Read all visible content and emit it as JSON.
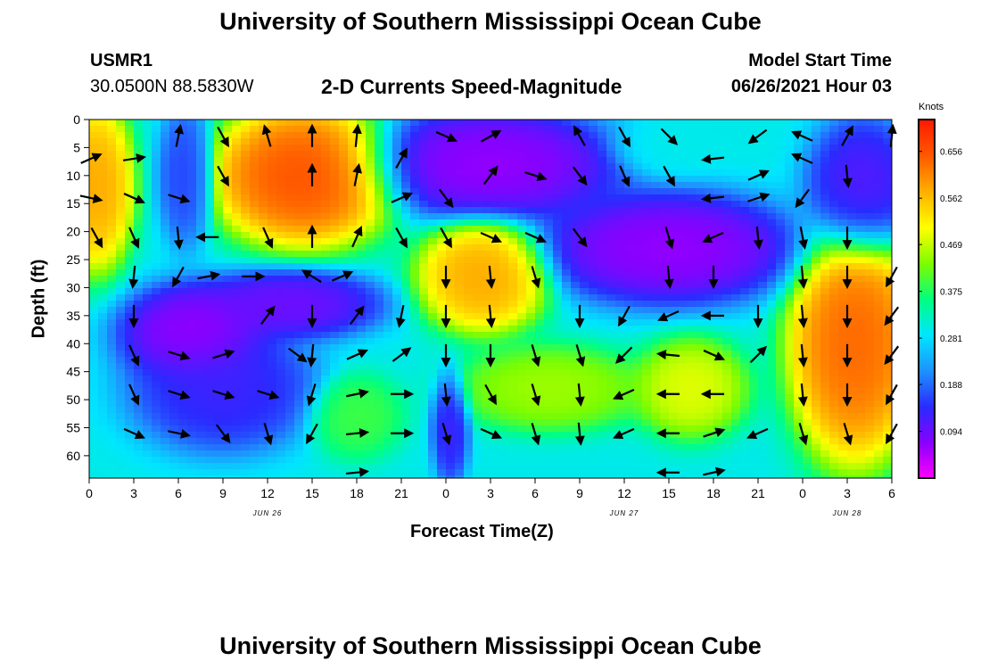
{
  "header": {
    "title": "University of Southern Mississippi Ocean Cube",
    "station": "USMR1",
    "coords": "30.0500N  88.5830W",
    "subtitle": "2-D Currents Speed-Magnitude",
    "model_start_label": "Model Start Time",
    "model_start_value": "06/26/2021 Hour 03"
  },
  "footer": {
    "title": "University of Southern Mississippi Ocean Cube"
  },
  "chart_data": {
    "type": "heatmap",
    "xlabel": "Forecast Time(Z)",
    "ylabel": "Depth (ft)",
    "x_ticks": [
      "0",
      "3",
      "6",
      "9",
      "12",
      "15",
      "18",
      "21",
      "0",
      "3",
      "6",
      "9",
      "12",
      "15",
      "18",
      "21",
      "0",
      "3",
      "6"
    ],
    "date_labels": [
      {
        "tick_index": 4,
        "text": "JUN 26"
      },
      {
        "tick_index": 12,
        "text": "JUN 27"
      },
      {
        "tick_index": 17,
        "text": "JUN 28"
      }
    ],
    "y_ticks": [
      0,
      5,
      10,
      15,
      20,
      25,
      30,
      35,
      40,
      45,
      50,
      55,
      60
    ],
    "ylim": [
      0,
      64
    ],
    "xlim_hours": [
      0,
      54
    ],
    "reversed_y": true,
    "colorbar": {
      "units": "Knots",
      "labels": [
        "0.656",
        "0.562",
        "0.469",
        "0.375",
        "0.281",
        "0.188",
        "0.094"
      ],
      "values": [
        0.656,
        0.562,
        0.469,
        0.375,
        0.281,
        0.188,
        0.094
      ],
      "range": [
        0,
        0.72
      ],
      "colors": [
        "#ff00ff",
        "#8a00ff",
        "#2a2aff",
        "#1e90ff",
        "#00e5ff",
        "#00ff80",
        "#7cfc00",
        "#ffff00",
        "#ffb000",
        "#ff5a00",
        "#ff1a00"
      ]
    },
    "speed_blobs": [
      {
        "t": 14.5,
        "d": 10,
        "rt": 5,
        "rd": 10,
        "v": 0.68
      },
      {
        "t": 0.5,
        "d": 12,
        "rt": 2,
        "rd": 12,
        "v": 0.6
      },
      {
        "t": 26.5,
        "d": 28,
        "rt": 3.5,
        "rd": 8,
        "v": 0.6
      },
      {
        "t": 51.5,
        "d": 40,
        "rt": 3.5,
        "rd": 17,
        "v": 0.66
      },
      {
        "t": 40.5,
        "d": 48,
        "rt": 3,
        "rd": 7,
        "v": 0.5
      },
      {
        "t": 31,
        "d": 48,
        "rt": 5,
        "rd": 6,
        "v": 0.46
      },
      {
        "t": 18,
        "d": 53,
        "rt": 2.5,
        "rd": 6,
        "v": 0.4
      },
      {
        "t": 7,
        "d": 38,
        "rt": 4,
        "rd": 7,
        "v": 0.05
      },
      {
        "t": 13.5,
        "d": 33,
        "rt": 5,
        "rd": 5,
        "v": 0.08
      },
      {
        "t": 9,
        "d": 48,
        "rt": 5,
        "rd": 9,
        "v": 0.12
      },
      {
        "t": 27,
        "d": 8,
        "rt": 7,
        "rd": 8,
        "v": 0.05
      },
      {
        "t": 39,
        "d": 23,
        "rt": 7,
        "rd": 8,
        "v": 0.05
      },
      {
        "t": 52,
        "d": 12,
        "rt": 3,
        "rd": 10,
        "v": 0.1
      },
      {
        "t": 24.3,
        "d": 55,
        "rt": 1,
        "rd": 8,
        "v": 0.12
      },
      {
        "t": 6.5,
        "d": 10,
        "rt": 1.5,
        "rd": 10,
        "v": 0.15
      },
      {
        "t": 39,
        "d": 5,
        "rt": 3,
        "rd": 4,
        "v": 0.3
      }
    ],
    "vectors": [
      {
        "t": 0.1,
        "d": 7,
        "u": 0.9,
        "w": -0.4
      },
      {
        "t": 0.1,
        "d": 14,
        "u": 0.95,
        "w": 0.2
      },
      {
        "t": 0.5,
        "d": 21,
        "u": 0.5,
        "w": 0.9
      },
      {
        "t": 3,
        "d": 7,
        "u": 0.95,
        "w": -0.15
      },
      {
        "t": 3,
        "d": 14,
        "u": 0.9,
        "w": 0.4
      },
      {
        "t": 3,
        "d": 21,
        "u": 0.4,
        "w": 0.9
      },
      {
        "t": 3,
        "d": 28,
        "u": -0.1,
        "w": 0.99
      },
      {
        "t": 3,
        "d": 35,
        "u": 0,
        "w": 1
      },
      {
        "t": 3,
        "d": 42,
        "u": 0.4,
        "w": 0.9
      },
      {
        "t": 3,
        "d": 49,
        "u": 0.4,
        "w": 0.9
      },
      {
        "t": 3,
        "d": 56,
        "u": 0.9,
        "w": 0.4
      },
      {
        "t": 6,
        "d": 3,
        "u": 0.2,
        "w": -1
      },
      {
        "t": 6,
        "d": 14,
        "u": 0.95,
        "w": 0.3
      },
      {
        "t": 6,
        "d": 21,
        "u": 0.1,
        "w": 1
      },
      {
        "t": 6,
        "d": 28,
        "u": -0.5,
        "w": 0.9
      },
      {
        "t": 6,
        "d": 42,
        "u": 0.95,
        "w": 0.3
      },
      {
        "t": 6,
        "d": 49,
        "u": 0.95,
        "w": 0.3
      },
      {
        "t": 6,
        "d": 56,
        "u": 0.95,
        "w": 0.2
      },
      {
        "t": 8,
        "d": 21,
        "u": -1,
        "w": 0
      },
      {
        "t": 8,
        "d": 28,
        "u": 1,
        "w": -0.2
      },
      {
        "t": 9,
        "d": 3,
        "u": 0.5,
        "w": 0.9
      },
      {
        "t": 9,
        "d": 10,
        "u": 0.5,
        "w": 0.9
      },
      {
        "t": 9,
        "d": 42,
        "u": 0.95,
        "w": -0.3
      },
      {
        "t": 9,
        "d": 49,
        "u": 0.95,
        "w": 0.3
      },
      {
        "t": 9,
        "d": 56,
        "u": 0.6,
        "w": 0.8
      },
      {
        "t": 11,
        "d": 28,
        "u": 1,
        "w": 0
      },
      {
        "t": 12,
        "d": 3,
        "u": -0.3,
        "w": -1
      },
      {
        "t": 12,
        "d": 21,
        "u": 0.4,
        "w": 0.9
      },
      {
        "t": 12,
        "d": 35,
        "u": 0.6,
        "w": -0.8
      },
      {
        "t": 12,
        "d": 49,
        "u": 0.95,
        "w": 0.3
      },
      {
        "t": 12,
        "d": 56,
        "u": 0.3,
        "w": 1
      },
      {
        "t": 14,
        "d": 42,
        "u": 0.8,
        "w": 0.6
      },
      {
        "t": 15,
        "d": 3,
        "u": 0,
        "w": -1
      },
      {
        "t": 15,
        "d": 10,
        "u": 0,
        "w": -1
      },
      {
        "t": 15,
        "d": 21,
        "u": 0,
        "w": -1
      },
      {
        "t": 15,
        "d": 28,
        "u": -0.8,
        "w": -0.5
      },
      {
        "t": 15,
        "d": 35,
        "u": 0,
        "w": 1
      },
      {
        "t": 15,
        "d": 42,
        "u": -0.1,
        "w": 1
      },
      {
        "t": 15,
        "d": 49,
        "u": -0.3,
        "w": 1
      },
      {
        "t": 15,
        "d": 56,
        "u": -0.5,
        "w": 0.9
      },
      {
        "t": 17,
        "d": 28,
        "u": 0.9,
        "w": -0.4
      },
      {
        "t": 18,
        "d": 3,
        "u": 0.1,
        "w": -1
      },
      {
        "t": 18,
        "d": 10,
        "u": 0.2,
        "w": -1
      },
      {
        "t": 18,
        "d": 21,
        "u": 0.4,
        "w": -0.9
      },
      {
        "t": 18,
        "d": 35,
        "u": 0.6,
        "w": -0.8
      },
      {
        "t": 18,
        "d": 42,
        "u": 0.9,
        "w": -0.4
      },
      {
        "t": 18,
        "d": 49,
        "u": 0.95,
        "w": -0.2
      },
      {
        "t": 18,
        "d": 56,
        "u": 1,
        "w": -0.1
      },
      {
        "t": 18,
        "d": 63,
        "u": 1,
        "w": -0.1
      },
      {
        "t": 21,
        "d": 7,
        "u": 0.5,
        "w": -0.9
      },
      {
        "t": 21,
        "d": 14,
        "u": 0.9,
        "w": -0.4
      },
      {
        "t": 21,
        "d": 21,
        "u": 0.5,
        "w": 0.9
      },
      {
        "t": 21,
        "d": 35,
        "u": -0.2,
        "w": 1
      },
      {
        "t": 21,
        "d": 42,
        "u": 0.8,
        "w": -0.6
      },
      {
        "t": 21,
        "d": 49,
        "u": 1,
        "w": 0
      },
      {
        "t": 21,
        "d": 56,
        "u": 1,
        "w": 0
      },
      {
        "t": 24,
        "d": 3,
        "u": 0.9,
        "w": 0.4
      },
      {
        "t": 24,
        "d": 14,
        "u": 0.6,
        "w": 0.8
      },
      {
        "t": 24,
        "d": 21,
        "u": 0.5,
        "w": 0.9
      },
      {
        "t": 24,
        "d": 28,
        "u": 0,
        "w": 1
      },
      {
        "t": 24,
        "d": 35,
        "u": 0,
        "w": 1
      },
      {
        "t": 24,
        "d": 42,
        "u": 0,
        "w": 1
      },
      {
        "t": 24,
        "d": 49,
        "u": 0.1,
        "w": 1
      },
      {
        "t": 24,
        "d": 56,
        "u": 0.3,
        "w": 1
      },
      {
        "t": 27,
        "d": 3,
        "u": 0.9,
        "w": -0.5
      },
      {
        "t": 27,
        "d": 10,
        "u": 0.6,
        "w": -0.8
      },
      {
        "t": 27,
        "d": 21,
        "u": 0.9,
        "w": 0.4
      },
      {
        "t": 27,
        "d": 28,
        "u": 0.1,
        "w": 1
      },
      {
        "t": 27,
        "d": 35,
        "u": 0.1,
        "w": 1
      },
      {
        "t": 27,
        "d": 42,
        "u": 0,
        "w": 1
      },
      {
        "t": 27,
        "d": 49,
        "u": 0.5,
        "w": 0.9
      },
      {
        "t": 27,
        "d": 56,
        "u": 0.9,
        "w": 0.4
      },
      {
        "t": 30,
        "d": 10,
        "u": 0.95,
        "w": 0.3
      },
      {
        "t": 30,
        "d": 21,
        "u": 0.9,
        "w": 0.4
      },
      {
        "t": 30,
        "d": 28,
        "u": 0.3,
        "w": 1
      },
      {
        "t": 30,
        "d": 42,
        "u": 0.3,
        "w": 1
      },
      {
        "t": 30,
        "d": 49,
        "u": 0.3,
        "w": 1
      },
      {
        "t": 30,
        "d": 56,
        "u": 0.3,
        "w": 1
      },
      {
        "t": 33,
        "d": 3,
        "u": -0.5,
        "w": -0.9
      },
      {
        "t": 33,
        "d": 10,
        "u": 0.6,
        "w": 0.8
      },
      {
        "t": 33,
        "d": 21,
        "u": 0.6,
        "w": 0.8
      },
      {
        "t": 33,
        "d": 35,
        "u": 0,
        "w": 1
      },
      {
        "t": 33,
        "d": 42,
        "u": 0.3,
        "w": 1
      },
      {
        "t": 33,
        "d": 49,
        "u": 0.1,
        "w": 1
      },
      {
        "t": 33,
        "d": 56,
        "u": 0.1,
        "w": 1
      },
      {
        "t": 36,
        "d": 3,
        "u": 0.5,
        "w": 0.9
      },
      {
        "t": 36,
        "d": 10,
        "u": 0.4,
        "w": 0.9
      },
      {
        "t": 36,
        "d": 35,
        "u": -0.5,
        "w": 0.9
      },
      {
        "t": 36,
        "d": 42,
        "u": -0.7,
        "w": 0.7
      },
      {
        "t": 36,
        "d": 49,
        "u": -0.9,
        "w": 0.4
      },
      {
        "t": 36,
        "d": 56,
        "u": -0.9,
        "w": 0.4
      },
      {
        "t": 39,
        "d": 3,
        "u": 0.7,
        "w": 0.7
      },
      {
        "t": 39,
        "d": 10,
        "u": 0.5,
        "w": 0.9
      },
      {
        "t": 39,
        "d": 21,
        "u": 0.3,
        "w": 1
      },
      {
        "t": 39,
        "d": 28,
        "u": 0.1,
        "w": 1
      },
      {
        "t": 39,
        "d": 35,
        "u": -0.9,
        "w": 0.4
      },
      {
        "t": 39,
        "d": 42,
        "u": -1,
        "w": -0.1
      },
      {
        "t": 39,
        "d": 49,
        "u": -1,
        "w": 0
      },
      {
        "t": 39,
        "d": 56,
        "u": -1,
        "w": 0
      },
      {
        "t": 39,
        "d": 63,
        "u": -1,
        "w": 0
      },
      {
        "t": 42,
        "d": 7,
        "u": -0.9,
        "w": 0.1
      },
      {
        "t": 42,
        "d": 14,
        "u": -0.9,
        "w": 0.1
      },
      {
        "t": 42,
        "d": 21,
        "u": -0.9,
        "w": 0.4
      },
      {
        "t": 42,
        "d": 28,
        "u": 0,
        "w": 1
      },
      {
        "t": 42,
        "d": 35,
        "u": -1,
        "w": 0
      },
      {
        "t": 42,
        "d": 42,
        "u": 0.9,
        "w": 0.4
      },
      {
        "t": 42,
        "d": 49,
        "u": -0.9,
        "w": 0
      },
      {
        "t": 42,
        "d": 56,
        "u": 0.9,
        "w": -0.3
      },
      {
        "t": 42,
        "d": 63,
        "u": 0.9,
        "w": -0.2
      },
      {
        "t": 45,
        "d": 3,
        "u": -0.8,
        "w": 0.6
      },
      {
        "t": 45,
        "d": 10,
        "u": 0.9,
        "w": -0.4
      },
      {
        "t": 45,
        "d": 14,
        "u": 0.9,
        "w": -0.3
      },
      {
        "t": 45,
        "d": 21,
        "u": 0.1,
        "w": 1
      },
      {
        "t": 45,
        "d": 35,
        "u": 0,
        "w": 1
      },
      {
        "t": 45,
        "d": 42,
        "u": 0.7,
        "w": -0.7
      },
      {
        "t": 45,
        "d": 56,
        "u": -0.9,
        "w": 0.4
      },
      {
        "t": 48,
        "d": 3,
        "u": -0.9,
        "w": -0.4
      },
      {
        "t": 48,
        "d": 7,
        "u": -0.9,
        "w": -0.4
      },
      {
        "t": 48,
        "d": 14,
        "u": -0.6,
        "w": 0.8
      },
      {
        "t": 48,
        "d": 21,
        "u": 0.2,
        "w": 1
      },
      {
        "t": 48,
        "d": 28,
        "u": 0.1,
        "w": 1
      },
      {
        "t": 48,
        "d": 35,
        "u": 0.1,
        "w": 1
      },
      {
        "t": 48,
        "d": 42,
        "u": 0.1,
        "w": 1
      },
      {
        "t": 48,
        "d": 49,
        "u": 0.1,
        "w": 1
      },
      {
        "t": 48,
        "d": 56,
        "u": 0.3,
        "w": 1
      },
      {
        "t": 51,
        "d": 3,
        "u": 0.5,
        "w": -0.9
      },
      {
        "t": 51,
        "d": 10,
        "u": 0.1,
        "w": 1
      },
      {
        "t": 51,
        "d": 21,
        "u": 0,
        "w": 1
      },
      {
        "t": 51,
        "d": 28,
        "u": 0,
        "w": 1
      },
      {
        "t": 51,
        "d": 35,
        "u": 0,
        "w": 1
      },
      {
        "t": 51,
        "d": 42,
        "u": 0,
        "w": 1
      },
      {
        "t": 51,
        "d": 49,
        "u": 0,
        "w": 1
      },
      {
        "t": 51,
        "d": 56,
        "u": 0.3,
        "w": 1
      },
      {
        "t": 54,
        "d": 3,
        "u": 0.1,
        "w": -1
      },
      {
        "t": 54,
        "d": 28,
        "u": -0.5,
        "w": 0.9
      },
      {
        "t": 54,
        "d": 35,
        "u": -0.6,
        "w": 0.8
      },
      {
        "t": 54,
        "d": 42,
        "u": -0.6,
        "w": 0.8
      },
      {
        "t": 54,
        "d": 49,
        "u": -0.5,
        "w": 0.9
      },
      {
        "t": 54,
        "d": 56,
        "u": -0.5,
        "w": 0.9
      }
    ]
  }
}
